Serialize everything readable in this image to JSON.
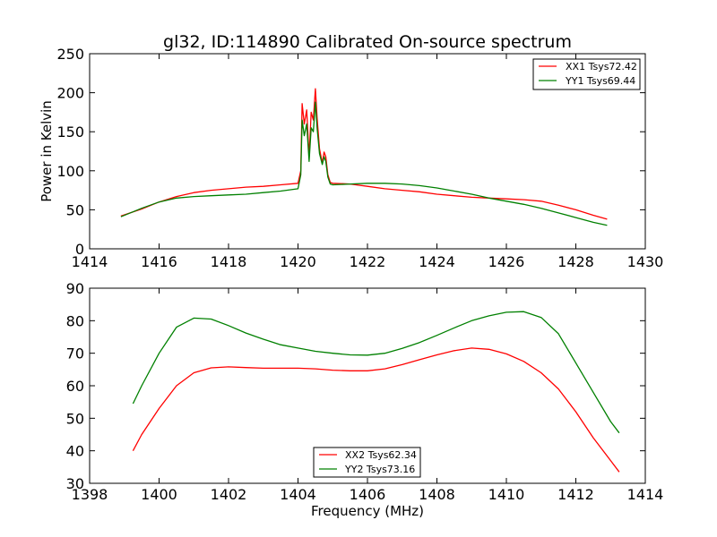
{
  "title": "gl32, ID:114890 Calibrated On-source spectrum",
  "colors": {
    "red": "#ff0000",
    "green": "#008000"
  },
  "chart_data": [
    {
      "type": "line",
      "ylabel": "Power in Kelvin",
      "xlabel": "",
      "xlim": [
        1414,
        1430
      ],
      "ylim": [
        0,
        250
      ],
      "xticks": [
        "1414",
        "1416",
        "1418",
        "1420",
        "1422",
        "1424",
        "1426",
        "1428",
        "1430"
      ],
      "yticks": [
        "0",
        "50",
        "100",
        "150",
        "200",
        "250"
      ],
      "legend": "top-right",
      "series": [
        {
          "name": "XX1 Tsys72.42",
          "color": "red",
          "x": [
            1414.9,
            1415.5,
            1416.0,
            1416.5,
            1417.0,
            1417.5,
            1418.0,
            1418.5,
            1419.0,
            1419.5,
            1420.0,
            1420.08,
            1420.12,
            1420.18,
            1420.25,
            1420.32,
            1420.38,
            1420.44,
            1420.5,
            1420.55,
            1420.62,
            1420.7,
            1420.75,
            1420.8,
            1420.86,
            1420.93,
            1421.0,
            1421.5,
            1422.0,
            1422.5,
            1423.0,
            1423.5,
            1424.0,
            1424.5,
            1425.0,
            1425.5,
            1426.0,
            1426.5,
            1427.0,
            1427.5,
            1428.0,
            1428.5,
            1428.9
          ],
          "y": [
            42,
            51,
            60,
            67,
            72,
            75,
            77,
            79,
            80,
            82,
            84,
            100,
            186,
            160,
            178,
            118,
            175,
            165,
            205,
            168,
            128,
            110,
            124,
            118,
            95,
            85,
            84,
            83,
            80,
            77,
            75,
            73,
            70,
            68,
            66,
            65,
            64,
            63,
            61,
            56,
            50,
            43,
            38
          ]
        },
        {
          "name": "YY1 Tsys69.44",
          "color": "green",
          "x": [
            1414.9,
            1415.5,
            1416.0,
            1416.5,
            1417.0,
            1417.5,
            1418.0,
            1418.5,
            1419.0,
            1419.5,
            1420.0,
            1420.08,
            1420.12,
            1420.18,
            1420.25,
            1420.32,
            1420.38,
            1420.44,
            1420.5,
            1420.55,
            1420.62,
            1420.7,
            1420.75,
            1420.8,
            1420.86,
            1420.93,
            1421.0,
            1421.5,
            1422.0,
            1422.5,
            1423.0,
            1423.5,
            1424.0,
            1424.5,
            1425.0,
            1425.5,
            1426.0,
            1426.5,
            1427.0,
            1427.5,
            1428.0,
            1428.5,
            1428.9
          ],
          "y": [
            41,
            52,
            60,
            65,
            67,
            68,
            69,
            70,
            72,
            74,
            77,
            95,
            165,
            145,
            160,
            112,
            155,
            150,
            188,
            155,
            122,
            108,
            118,
            112,
            92,
            83,
            82,
            83,
            84,
            84,
            83,
            81,
            78,
            74,
            70,
            65,
            61,
            57,
            52,
            46,
            40,
            34,
            30
          ]
        }
      ]
    },
    {
      "type": "line",
      "ylabel": "",
      "xlabel": "Frequency (MHz)",
      "xlim": [
        1398,
        1414
      ],
      "ylim": [
        30,
        90
      ],
      "xticks": [
        "1398",
        "1400",
        "1402",
        "1404",
        "1406",
        "1408",
        "1410",
        "1412",
        "1414"
      ],
      "yticks": [
        "30",
        "40",
        "50",
        "60",
        "70",
        "80",
        "90"
      ],
      "legend": "bottom-center",
      "series": [
        {
          "name": "XX2 Tsys62.34",
          "color": "red",
          "x": [
            1399.25,
            1399.5,
            1400.0,
            1400.5,
            1401.0,
            1401.5,
            1402.0,
            1402.5,
            1403.0,
            1403.5,
            1404.0,
            1404.5,
            1405.0,
            1405.5,
            1406.0,
            1406.5,
            1407.0,
            1407.5,
            1408.0,
            1408.5,
            1409.0,
            1409.5,
            1410.0,
            1410.5,
            1411.0,
            1411.5,
            1412.0,
            1412.5,
            1413.0,
            1413.25
          ],
          "y": [
            40,
            45,
            53,
            60,
            64,
            65.5,
            65.8,
            65.6,
            65.4,
            65.4,
            65.4,
            65.2,
            64.8,
            64.6,
            64.6,
            65.2,
            66.5,
            68.0,
            69.5,
            70.8,
            71.6,
            71.2,
            69.8,
            67.5,
            64.0,
            59.0,
            52.0,
            44.0,
            37.0,
            33.5
          ]
        },
        {
          "name": "YY2 Tsys73.16",
          "color": "green",
          "x": [
            1399.25,
            1399.5,
            1400.0,
            1400.5,
            1401.0,
            1401.5,
            1402.0,
            1402.5,
            1403.0,
            1403.5,
            1404.0,
            1404.5,
            1405.0,
            1405.5,
            1406.0,
            1406.5,
            1407.0,
            1407.5,
            1408.0,
            1408.5,
            1409.0,
            1409.5,
            1410.0,
            1410.5,
            1411.0,
            1411.5,
            1412.0,
            1412.5,
            1413.0,
            1413.25
          ],
          "y": [
            54.5,
            60,
            70,
            78,
            80.8,
            80.5,
            78.5,
            76.2,
            74.3,
            72.6,
            71.6,
            70.6,
            70.0,
            69.5,
            69.4,
            70.0,
            71.5,
            73.3,
            75.5,
            77.8,
            80.0,
            81.5,
            82.6,
            82.8,
            81.0,
            76.0,
            67.0,
            58.0,
            49.0,
            45.5
          ]
        }
      ]
    }
  ]
}
